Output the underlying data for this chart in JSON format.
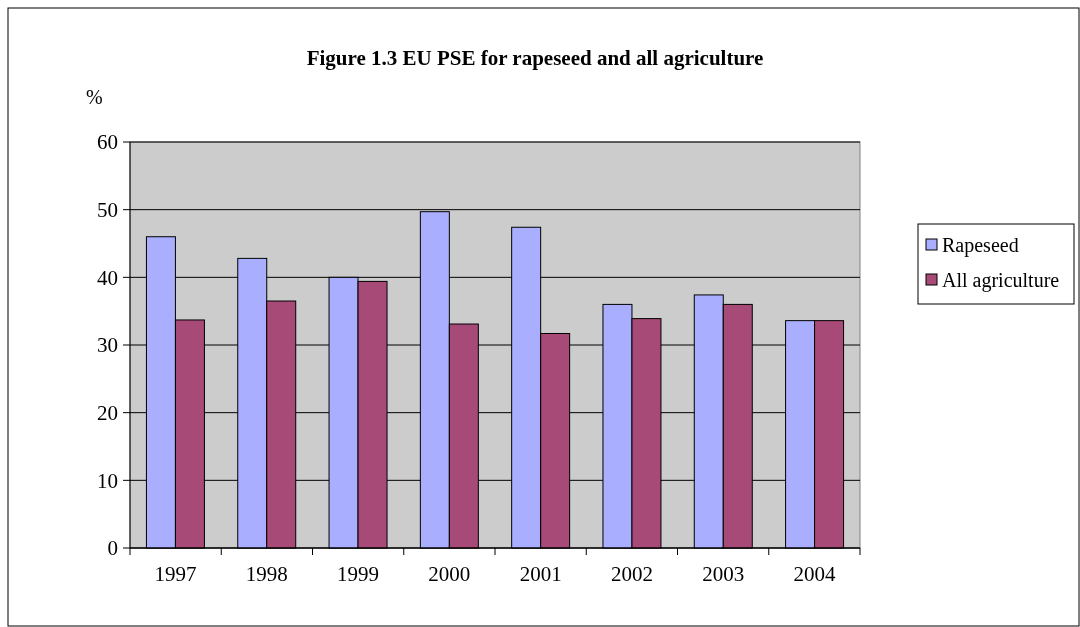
{
  "chart_data": {
    "type": "bar",
    "title": "Figure 1.3 EU PSE for rapeseed and all agriculture",
    "ylabel": "%",
    "categories": [
      "1997",
      "1998",
      "1999",
      "2000",
      "2001",
      "2002",
      "2003",
      "2004"
    ],
    "series": [
      {
        "name": "Rapeseed",
        "color": "#a9aeff",
        "values": [
          46.0,
          42.8,
          40.0,
          49.7,
          47.4,
          36.0,
          37.4,
          33.6
        ]
      },
      {
        "name": "All agriculture",
        "color": "#a84a77",
        "values": [
          33.7,
          36.5,
          39.4,
          33.1,
          31.7,
          33.9,
          36.0,
          33.6
        ]
      }
    ],
    "ylim": [
      0,
      60
    ],
    "yticks": [
      0,
      10,
      20,
      30,
      40,
      50,
      60
    ],
    "grid": "y",
    "legend": "right"
  }
}
